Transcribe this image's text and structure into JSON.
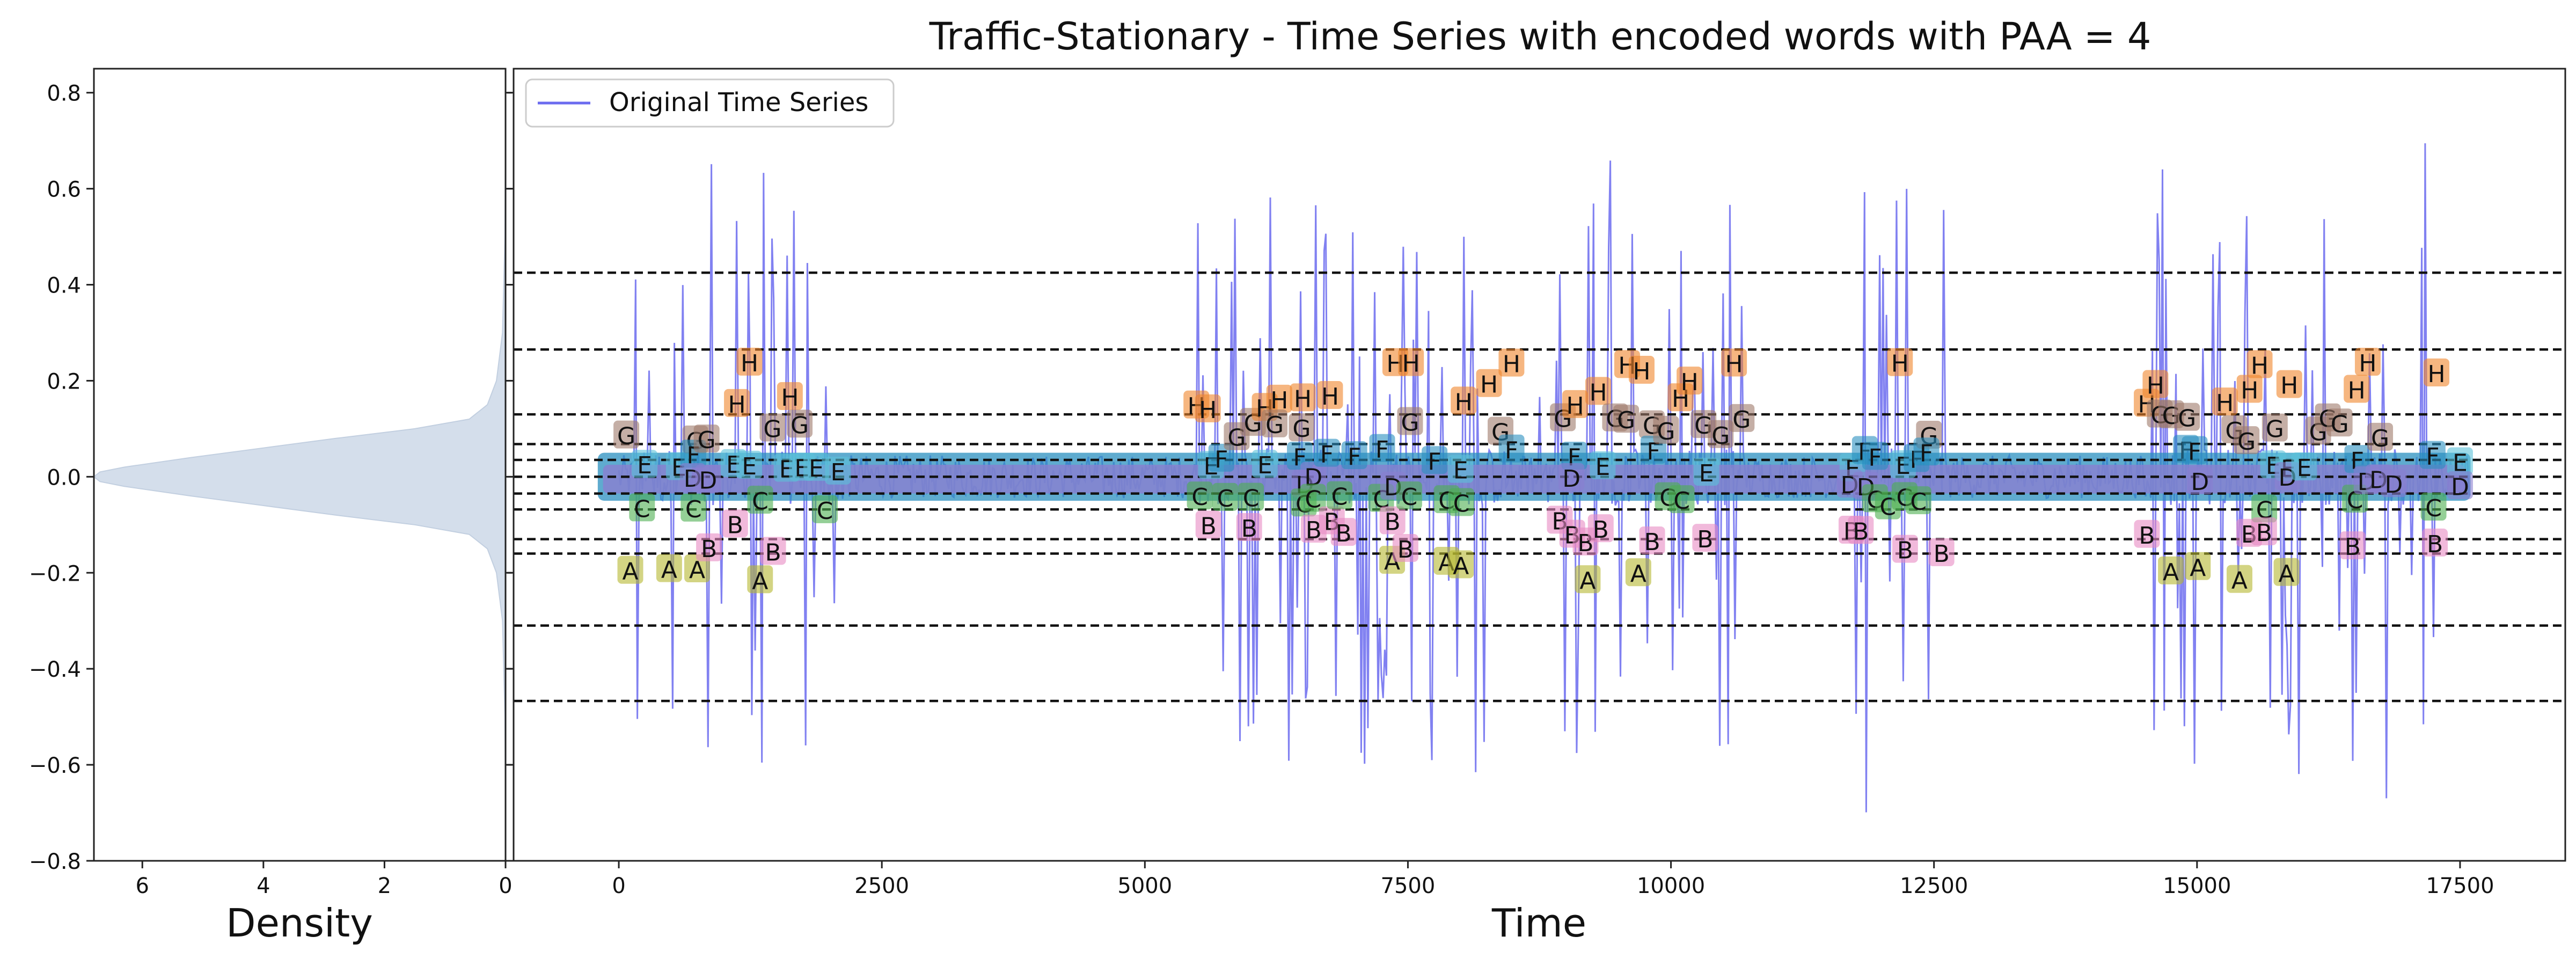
{
  "title": "Traffic-Stationary - Time Series with encoded words with PAA = 4",
  "chart_data": [
    {
      "panel": "density",
      "type": "area",
      "orientation": "horizontal",
      "xlabel": "Density",
      "ylabel": "",
      "xlim": [
        6.8,
        0
      ],
      "ylim": [
        -0.8,
        0.85
      ],
      "xticks": [
        "6",
        "4",
        "2",
        "0"
      ],
      "yticks": [
        "0.8",
        "0.6",
        "0.4",
        "0.2",
        "0.0",
        "−0.2",
        "−0.4",
        "−0.6",
        "−0.8"
      ],
      "fill_color": "#d4deeb",
      "kde": {
        "y": [
          -0.72,
          -0.5,
          -0.3,
          -0.2,
          -0.15,
          -0.12,
          -0.1,
          -0.08,
          -0.06,
          -0.04,
          -0.02,
          -0.01,
          0.0,
          0.01,
          0.02,
          0.04,
          0.06,
          0.08,
          0.1,
          0.12,
          0.15,
          0.2,
          0.3,
          0.5,
          0.76
        ],
        "density": [
          0.0,
          0.01,
          0.05,
          0.15,
          0.3,
          0.6,
          1.5,
          2.8,
          4.0,
          5.2,
          6.3,
          6.7,
          6.8,
          6.7,
          6.3,
          5.2,
          4.0,
          2.8,
          1.5,
          0.6,
          0.3,
          0.15,
          0.05,
          0.01,
          0.0
        ]
      }
    },
    {
      "panel": "time-series",
      "type": "line",
      "xlabel": "Time",
      "ylabel": "",
      "xlim": [
        -1000,
        18500
      ],
      "ylim": [
        -0.8,
        0.85
      ],
      "xticks": [
        "0",
        "2500",
        "5000",
        "7500",
        "10000",
        "12500",
        "15000",
        "17500"
      ],
      "grid": false,
      "legend": {
        "position": "top-left",
        "entries": [
          "Original Time Series"
        ]
      },
      "series": [
        {
          "name": "Original Time Series",
          "color": "#6b6bef",
          "bursts": [
            [
              100,
              2150
            ],
            [
              5500,
              8500
            ],
            [
              8700,
              10700
            ],
            [
              11700,
              12600
            ],
            [
              14500,
              17250
            ]
          ],
          "x_end": 17600,
          "quiet_band": [
            -0.05,
            0.05
          ],
          "max": 0.7,
          "min": -0.72
        }
      ],
      "breakpoints": [
        0.425,
        0.265,
        0.13,
        0.068,
        0.035,
        0.0,
        -0.035,
        -0.068,
        -0.13,
        -0.16,
        -0.31,
        -0.467
      ],
      "symbols": [
        {
          "letter": "H",
          "color": "#f0862c",
          "y_range": [
            0.14,
            0.24
          ]
        },
        {
          "letter": "G",
          "color": "#9e7a6a",
          "y_range": [
            0.07,
            0.13
          ]
        },
        {
          "letter": "F",
          "color": "#2a8fbf",
          "y_range": [
            0.03,
            0.06
          ]
        },
        {
          "letter": "E",
          "color": "#5bc1d9",
          "y_range": [
            0.005,
            0.03
          ]
        },
        {
          "letter": "D",
          "color": "#8a7fd0",
          "y_range": [
            -0.03,
            0.0
          ]
        },
        {
          "letter": "C",
          "color": "#4caf50",
          "y_range": [
            -0.07,
            -0.04
          ]
        },
        {
          "letter": "B",
          "color": "#e78ac3",
          "y_range": [
            -0.16,
            -0.09
          ]
        },
        {
          "letter": "A",
          "color": "#b5b830",
          "y_range": [
            -0.22,
            -0.17
          ]
        }
      ]
    }
  ]
}
